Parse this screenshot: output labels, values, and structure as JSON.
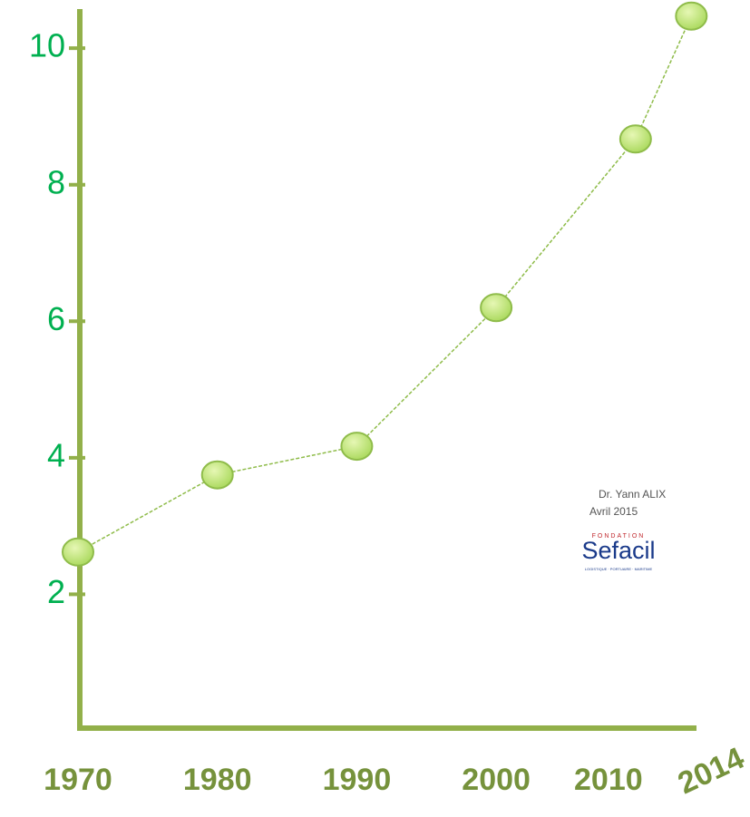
{
  "chart_data": {
    "type": "line",
    "x": [
      1970,
      1980,
      1990,
      2000,
      2010,
      2014
    ],
    "series": [
      {
        "color": "#8fbc4a",
        "values": [
          2.62,
          3.75,
          4.17,
          6.2,
          8.67,
          10.47
        ]
      }
    ],
    "xlim": [
      1970,
      2014.5
    ],
    "ylim": [
      0,
      10.6
    ],
    "yticks": [
      2,
      4,
      6,
      8,
      10
    ],
    "annotations": [
      "Dr. Yann ALIX",
      "Avril 2015",
      "FONDATION",
      "Sefacil",
      "LOGISTIQUE · PORTUAIRE · MARITIME"
    ]
  }
}
